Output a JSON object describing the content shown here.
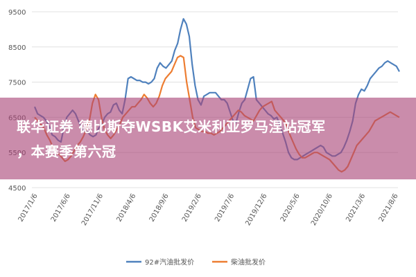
{
  "chart_data": {
    "type": "line",
    "ylim": [
      4500,
      9500
    ],
    "y_ticks": [
      "9500",
      "8500",
      "7500",
      "6500",
      "5500",
      "4500"
    ],
    "y_tick_values": [
      9500,
      8500,
      7500,
      6500,
      5500,
      4500
    ],
    "x_ticks": [
      "2017/1/6",
      "2017/6/6",
      "2017/11/6",
      "2018/4/6",
      "2018/9/6",
      "2019/2/6",
      "2019/7/6",
      "2019/12/6",
      "2020/5/6",
      "2020/10/6",
      "2021/3/6",
      "2021/8/6"
    ],
    "grid": true,
    "legend_position": "bottom",
    "series": [
      {
        "name": "92#汽油批发价",
        "color": "#4f81bd",
        "values": [
          6800,
          6600,
          6550,
          6500,
          6400,
          6250,
          6000,
          5950,
          5850,
          5800,
          6200,
          6500,
          6600,
          6700,
          6600,
          6400,
          6200,
          6100,
          6100,
          6000,
          5950,
          6000,
          6200,
          6300,
          6500,
          6600,
          6650,
          6850,
          6900,
          6700,
          6600,
          7000,
          7600,
          7650,
          7600,
          7550,
          7550,
          7500,
          7500,
          7450,
          7500,
          7600,
          7900,
          8050,
          7950,
          7900,
          8000,
          8100,
          8400,
          8600,
          9000,
          9300,
          9150,
          8800,
          8000,
          7400,
          7000,
          6850,
          7100,
          7150,
          7200,
          7200,
          7200,
          7100,
          7000,
          7000,
          6900,
          6650,
          6400,
          6350,
          6650,
          6900,
          7000,
          7300,
          7600,
          7650,
          7000,
          6900,
          6800,
          6700,
          6600,
          6550,
          6450,
          6500,
          6300,
          6050,
          5800,
          5500,
          5350,
          5300,
          5300,
          5350,
          5400,
          5450,
          5500,
          5550,
          5600,
          5650,
          5700,
          5650,
          5500,
          5450,
          5400,
          5400,
          5450,
          5500,
          5650,
          5850,
          6100,
          6400,
          6900,
          7150,
          7300,
          7250,
          7400,
          7600,
          7700,
          7800,
          7900,
          7950,
          8050,
          8100,
          8050,
          8000,
          7950,
          7800
        ]
      },
      {
        "name": "柴油批发价",
        "color": "#ed7d31",
        "values": [
          6500,
          6400,
          6300,
          6200,
          6000,
          5850,
          5650,
          5500,
          5450,
          5350,
          5250,
          5300,
          5400,
          5550,
          5700,
          5800,
          5950,
          6150,
          6400,
          6900,
          7150,
          7000,
          6500,
          6150,
          6000,
          5900,
          6000,
          6150,
          6300,
          6500,
          6600,
          6700,
          6800,
          6800,
          6900,
          7000,
          7150,
          7050,
          6900,
          6800,
          6900,
          7100,
          7400,
          7600,
          7700,
          7800,
          8000,
          8200,
          8250,
          8200,
          7500,
          7000,
          6500,
          6200,
          6150,
          6100,
          6100,
          6050,
          6050,
          6000,
          6050,
          6100,
          6200,
          6300,
          6400,
          6500,
          6600,
          6700,
          6650,
          6550,
          6500,
          6450,
          6400,
          6550,
          6700,
          6800,
          6850,
          6900,
          6950,
          6700,
          6600,
          6500,
          6400,
          6250,
          6000,
          5800,
          5600,
          5450,
          5350,
          5350,
          5400,
          5450,
          5500,
          5500,
          5450,
          5400,
          5350,
          5300,
          5200,
          5100,
          5000,
          4950,
          5000,
          5100,
          5300,
          5500,
          5700,
          5800,
          5900,
          6000,
          6100,
          6250,
          6400,
          6450,
          6500,
          6550,
          6600,
          6650,
          6600,
          6550,
          6500
        ]
      }
    ]
  }
}
